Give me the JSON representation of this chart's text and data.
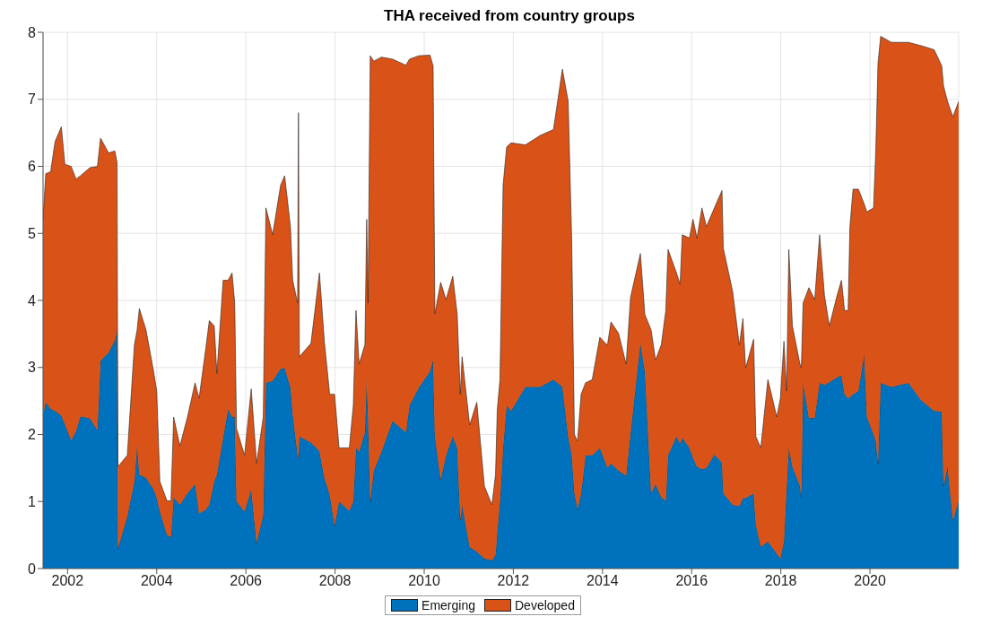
{
  "chart_data": {
    "type": "area",
    "title": "THA received from country groups",
    "stacked": true,
    "grid": true,
    "legend": "bottom",
    "x": [
      2001.45,
      2001.51,
      2001.62,
      2001.72,
      2001.86,
      2001.94,
      2002.08,
      2002.19,
      2002.29,
      2002.5,
      2002.67,
      2002.74,
      2002.92,
      2003.06,
      2003.11,
      2003.13,
      2003.34,
      2003.5,
      2003.56,
      2003.61,
      2003.76,
      2003.93,
      2004.0,
      2004.07,
      2004.23,
      2004.32,
      2004.38,
      2004.52,
      2004.69,
      2004.86,
      2004.95,
      2005.1,
      2005.18,
      2005.29,
      2005.35,
      2005.49,
      2005.6,
      2005.69,
      2005.75,
      2005.79,
      2005.97,
      2006.12,
      2006.24,
      2006.39,
      2006.45,
      2006.6,
      2006.78,
      2006.87,
      2007.0,
      2007.05,
      2007.16,
      2007.18,
      2007.2,
      2007.46,
      2007.65,
      2007.76,
      2007.88,
      2007.99,
      2008.09,
      2008.32,
      2008.41,
      2008.47,
      2008.54,
      2008.67,
      2008.71,
      2008.74,
      2008.79,
      2008.87,
      2009.04,
      2009.29,
      2009.59,
      2009.67,
      2009.88,
      2010.13,
      2010.2,
      2010.24,
      2010.37,
      2010.49,
      2010.64,
      2010.74,
      2010.81,
      2010.85,
      2011.02,
      2011.18,
      2011.35,
      2011.52,
      2011.6,
      2011.64,
      2011.7,
      2011.77,
      2011.85,
      2011.95,
      2012.27,
      2012.6,
      2012.9,
      2013.1,
      2013.23,
      2013.31,
      2013.37,
      2013.44,
      2013.52,
      2013.62,
      2013.77,
      2013.94,
      2014.11,
      2014.19,
      2014.36,
      2014.53,
      2014.63,
      2014.85,
      2014.95,
      2015.09,
      2015.19,
      2015.32,
      2015.42,
      2015.47,
      2015.66,
      2015.74,
      2015.79,
      2015.95,
      2016.03,
      2016.12,
      2016.23,
      2016.33,
      2016.51,
      2016.68,
      2016.71,
      2016.92,
      2017.07,
      2017.15,
      2017.21,
      2017.39,
      2017.44,
      2017.55,
      2017.71,
      2017.91,
      2017.99,
      2018.07,
      2018.13,
      2018.18,
      2018.26,
      2018.43,
      2018.46,
      2018.5,
      2018.63,
      2018.76,
      2018.87,
      2018.98,
      2019.09,
      2019.26,
      2019.36,
      2019.43,
      2019.51,
      2019.55,
      2019.62,
      2019.74,
      2019.87,
      2019.93,
      2020.08,
      2020.13,
      2020.18,
      2020.24,
      2020.48,
      2020.86,
      2021.15,
      2021.44,
      2021.61,
      2021.65,
      2021.74,
      2021.86,
      2021.99
    ],
    "series": [
      {
        "name": "Emerging",
        "color": "#0072bd",
        "values": [
          2.28,
          2.48,
          2.38,
          2.35,
          2.28,
          2.15,
          1.91,
          2.05,
          2.27,
          2.24,
          2.06,
          3.1,
          3.22,
          3.4,
          3.56,
          0.3,
          0.78,
          1.3,
          1.83,
          1.4,
          1.35,
          1.18,
          1.05,
          0.85,
          0.5,
          0.47,
          1.06,
          0.95,
          1.12,
          1.26,
          0.82,
          0.88,
          0.95,
          1.3,
          1.4,
          1.95,
          2.37,
          2.26,
          2.26,
          1.0,
          0.85,
          1.18,
          0.38,
          0.8,
          2.77,
          2.8,
          2.98,
          2.99,
          2.7,
          2.3,
          1.7,
          1.65,
          1.97,
          1.88,
          1.75,
          1.35,
          1.1,
          0.64,
          1.0,
          0.86,
          1.0,
          1.8,
          1.74,
          2.03,
          2.82,
          2.26,
          1.0,
          1.46,
          1.74,
          2.2,
          2.03,
          2.43,
          2.7,
          2.94,
          3.11,
          1.97,
          1.32,
          1.69,
          1.97,
          1.8,
          0.72,
          0.95,
          0.32,
          0.25,
          0.15,
          0.12,
          0.2,
          0.55,
          1.0,
          1.8,
          2.43,
          2.35,
          2.71,
          2.71,
          2.82,
          2.71,
          1.97,
          1.69,
          1.12,
          0.89,
          1.12,
          1.69,
          1.69,
          1.8,
          1.5,
          1.57,
          1.46,
          1.38,
          2.03,
          3.36,
          2.94,
          1.12,
          1.26,
          1.06,
          1.01,
          1.69,
          1.97,
          1.86,
          1.95,
          1.8,
          1.65,
          1.52,
          1.48,
          1.5,
          1.7,
          1.58,
          1.12,
          0.95,
          0.93,
          1.05,
          1.05,
          1.12,
          0.65,
          0.32,
          0.4,
          0.22,
          0.15,
          0.4,
          1.2,
          1.8,
          1.52,
          1.23,
          1.06,
          2.77,
          2.24,
          2.25,
          2.77,
          2.74,
          2.78,
          2.85,
          2.88,
          2.6,
          2.54,
          2.56,
          2.6,
          2.65,
          3.19,
          2.26,
          2.0,
          1.9,
          1.57,
          2.77,
          2.71,
          2.77,
          2.51,
          2.35,
          2.34,
          1.23,
          1.52,
          0.72,
          1.01
        ]
      },
      {
        "name": "Developed",
        "color": "#d95319",
        "values": [
          2.93,
          3.41,
          3.54,
          4.02,
          4.31,
          3.88,
          4.09,
          3.76,
          3.59,
          3.74,
          3.94,
          3.32,
          2.98,
          2.83,
          2.5,
          1.22,
          0.91,
          2.04,
          1.73,
          2.48,
          2.21,
          1.76,
          1.6,
          0.45,
          0.51,
          0.54,
          1.2,
          0.88,
          1.14,
          1.51,
          1.72,
          2.4,
          2.75,
          2.32,
          1.51,
          2.35,
          1.93,
          2.15,
          1.7,
          1.09,
          0.84,
          1.5,
          1.19,
          1.46,
          2.61,
          2.18,
          2.74,
          2.87,
          2.4,
          2.0,
          2.26,
          5.15,
          1.19,
          1.48,
          2.66,
          2.04,
          1.5,
          1.96,
          0.8,
          0.94,
          1.43,
          2.05,
          1.31,
          1.31,
          2.39,
          1.7,
          6.65,
          6.11,
          5.89,
          5.4,
          5.48,
          5.17,
          4.95,
          4.72,
          4.39,
          1.83,
          2.95,
          2.32,
          2.39,
          2.0,
          1.88,
          2.21,
          1.82,
          2.23,
          1.08,
          0.83,
          1.2,
          1.82,
          1.82,
          3.92,
          3.86,
          4.0,
          3.61,
          3.75,
          3.73,
          4.74,
          5.0,
          3.18,
          0.88,
          1.01,
          1.48,
          1.08,
          1.13,
          1.65,
          1.83,
          2.11,
          2.05,
          1.67,
          2.02,
          1.34,
          0.85,
          2.44,
          1.85,
          2.28,
          2.84,
          3.07,
          2.44,
          2.38,
          3.03,
          3.13,
          3.56,
          3.41,
          3.9,
          3.6,
          3.68,
          4.06,
          3.66,
          3.18,
          2.4,
          2.68,
          1.94,
          2.3,
          1.32,
          1.48,
          2.42,
          2.04,
          2.39,
          2.99,
          1.45,
          2.96,
          2.1,
          1.82,
          1.93,
          1.19,
          1.95,
          1.76,
          2.21,
          1.33,
          0.84,
          1.22,
          1.42,
          1.25,
          1.31,
          2.54,
          3.06,
          3.01,
          2.25,
          3.06,
          3.38,
          4.33,
          5.97,
          5.17,
          5.14,
          5.08,
          5.29,
          5.39,
          5.16,
          5.97,
          5.45,
          6.02,
          5.96
        ]
      }
    ],
    "xlim": [
      2001.45,
      2021.99
    ],
    "xticks": [
      2002,
      2004,
      2006,
      2008,
      2010,
      2012,
      2014,
      2016,
      2018,
      2020
    ],
    "ylim": [
      0,
      8
    ],
    "yticks": [
      0,
      1,
      2,
      3,
      4,
      5,
      6,
      7,
      8
    ]
  }
}
